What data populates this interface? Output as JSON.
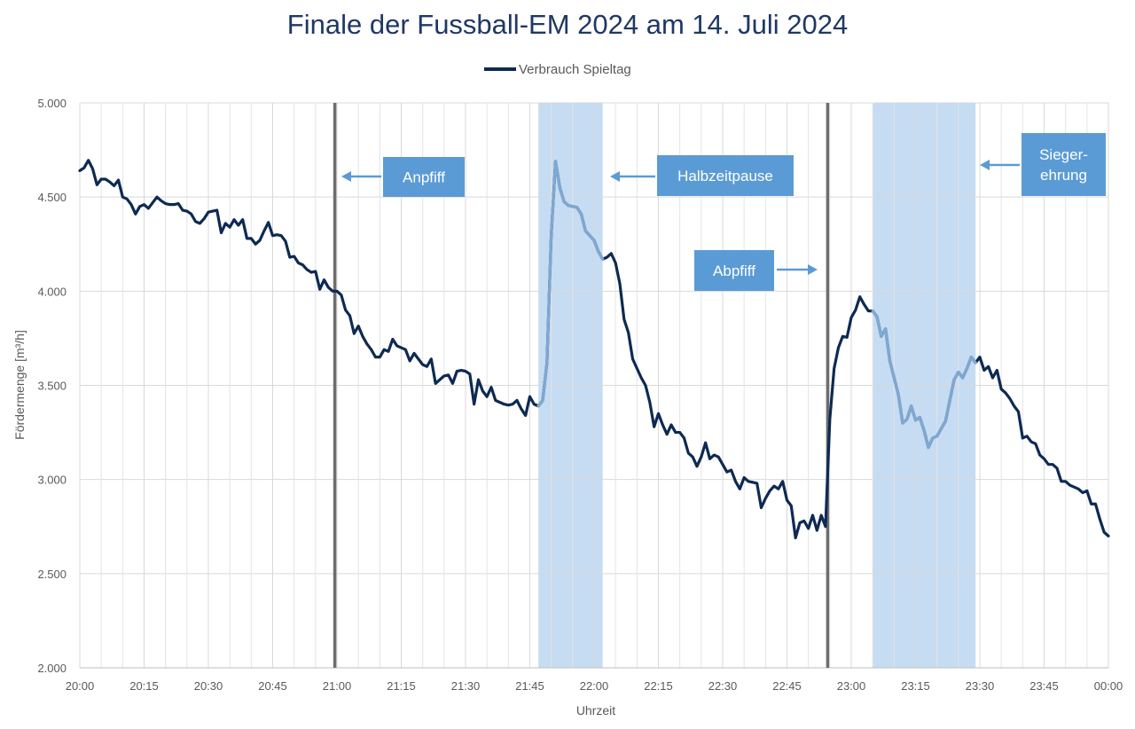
{
  "chart_data": {
    "type": "line",
    "title": "Finale der Fussball-EM 2024 am 14. Juli 2024",
    "xlabel": "Uhrzeit",
    "ylabel": "Fördermenge [m³/h]",
    "ylim": [
      2000,
      5000
    ],
    "y_ticks": [
      2000,
      2500,
      3000,
      3500,
      4000,
      4500,
      5000
    ],
    "y_tick_labels": [
      "2.000",
      "2.500",
      "3.000",
      "3.500",
      "4.000",
      "4.500",
      "5.000"
    ],
    "x_ticks": [
      "20:00",
      "20:15",
      "20:30",
      "20:45",
      "21:00",
      "21:15",
      "21:30",
      "21:45",
      "22:00",
      "22:15",
      "22:30",
      "22:45",
      "23:00",
      "23:15",
      "23:30",
      "23:45",
      "00:00"
    ],
    "grid": true,
    "legend_position": "top",
    "series": [
      {
        "name": "Verbrauch Spieltag",
        "color": "#0d2a52",
        "x": [
          "20:00",
          "20:01",
          "20:02",
          "20:03",
          "20:04",
          "20:05",
          "20:06",
          "20:07",
          "20:08",
          "20:09",
          "20:10",
          "20:11",
          "20:12",
          "20:13",
          "20:14",
          "20:15",
          "20:16",
          "20:17",
          "20:18",
          "20:19",
          "20:20",
          "20:21",
          "20:22",
          "20:23",
          "20:24",
          "20:25",
          "20:26",
          "20:27",
          "20:28",
          "20:29",
          "20:30",
          "20:31",
          "20:32",
          "20:33",
          "20:34",
          "20:35",
          "20:36",
          "20:37",
          "20:38",
          "20:39",
          "20:40",
          "20:41",
          "20:42",
          "20:43",
          "20:44",
          "20:45",
          "20:46",
          "20:47",
          "20:48",
          "20:49",
          "20:50",
          "20:51",
          "20:52",
          "20:53",
          "20:54",
          "20:55",
          "20:56",
          "20:57",
          "20:58",
          "20:59",
          "21:00",
          "21:01",
          "21:02",
          "21:03",
          "21:04",
          "21:05",
          "21:06",
          "21:07",
          "21:08",
          "21:09",
          "21:10",
          "21:11",
          "21:12",
          "21:13",
          "21:14",
          "21:15",
          "21:16",
          "21:17",
          "21:18",
          "21:19",
          "21:20",
          "21:21",
          "21:22",
          "21:23",
          "21:24",
          "21:25",
          "21:26",
          "21:27",
          "21:28",
          "21:29",
          "21:30",
          "21:31",
          "21:32",
          "21:33",
          "21:34",
          "21:35",
          "21:36",
          "21:37",
          "21:38",
          "21:39",
          "21:40",
          "21:41",
          "21:42",
          "21:43",
          "21:44",
          "21:45",
          "21:46",
          "21:47",
          "21:48",
          "21:49",
          "21:50",
          "21:51",
          "21:52",
          "21:53",
          "21:54",
          "21:55",
          "21:56",
          "21:57",
          "21:58",
          "21:59",
          "22:00",
          "22:01",
          "22:02",
          "22:03",
          "22:04",
          "22:05",
          "22:06",
          "22:07",
          "22:08",
          "22:09",
          "22:10",
          "22:11",
          "22:12",
          "22:13",
          "22:14",
          "22:15",
          "22:16",
          "22:17",
          "22:18",
          "22:19",
          "22:20",
          "22:21",
          "22:22",
          "22:23",
          "22:24",
          "22:25",
          "22:26",
          "22:27",
          "22:28",
          "22:29",
          "22:30",
          "22:31",
          "22:32",
          "22:33",
          "22:34",
          "22:35",
          "22:36",
          "22:37",
          "22:38",
          "22:39",
          "22:40",
          "22:41",
          "22:42",
          "22:43",
          "22:44",
          "22:45",
          "22:46",
          "22:47",
          "22:48",
          "22:49",
          "22:50",
          "22:51",
          "22:52",
          "22:53",
          "22:54",
          "22:55",
          "22:56",
          "22:57",
          "22:58",
          "22:59",
          "23:00",
          "23:01",
          "23:02",
          "23:03",
          "23:04",
          "23:05",
          "23:06",
          "23:07",
          "23:08",
          "23:09",
          "23:10",
          "23:11",
          "23:12",
          "23:13",
          "23:14",
          "23:15",
          "23:16",
          "23:17",
          "23:18",
          "23:19",
          "23:20",
          "23:21",
          "23:22",
          "23:23",
          "23:24",
          "23:25",
          "23:26",
          "23:27",
          "23:28",
          "23:29",
          "23:30",
          "23:31",
          "23:32",
          "23:33",
          "23:34",
          "23:35",
          "23:36",
          "23:37",
          "23:38",
          "23:39",
          "23:40",
          "23:41",
          "23:42",
          "23:43",
          "23:44",
          "23:45",
          "23:46",
          "23:47",
          "23:48",
          "23:49",
          "23:50",
          "23:51",
          "23:52",
          "23:53",
          "23:54",
          "23:55",
          "23:56",
          "23:57",
          "23:58",
          "23:59",
          "00:00"
        ],
        "y": [
          4640,
          4655,
          4695,
          4650,
          4565,
          4595,
          4595,
          4580,
          4560,
          4590,
          4500,
          4490,
          4460,
          4410,
          4450,
          4460,
          4440,
          4470,
          4500,
          4480,
          4465,
          4460,
          4460,
          4465,
          4430,
          4425,
          4410,
          4370,
          4360,
          4385,
          4420,
          4425,
          4430,
          4310,
          4360,
          4340,
          4380,
          4350,
          4380,
          4280,
          4280,
          4250,
          4270,
          4320,
          4365,
          4295,
          4300,
          4295,
          4265,
          4180,
          4185,
          4150,
          4140,
          4115,
          4100,
          4105,
          4010,
          4060,
          4020,
          4000,
          4000,
          3980,
          3900,
          3870,
          3775,
          3815,
          3760,
          3720,
          3690,
          3650,
          3650,
          3690,
          3680,
          3745,
          3710,
          3700,
          3690,
          3630,
          3670,
          3640,
          3610,
          3600,
          3640,
          3510,
          3530,
          3550,
          3555,
          3510,
          3575,
          3580,
          3575,
          3560,
          3400,
          3530,
          3470,
          3440,
          3490,
          3420,
          3410,
          3400,
          3395,
          3400,
          3420,
          3375,
          3340,
          3440,
          3400,
          3390,
          3420,
          3620,
          4300,
          4690,
          4550,
          4475,
          4455,
          4450,
          4445,
          4410,
          4320,
          4295,
          4270,
          4210,
          4170,
          4180,
          4200,
          4150,
          4040,
          3850,
          3780,
          3640,
          3590,
          3540,
          3500,
          3410,
          3280,
          3350,
          3290,
          3240,
          3290,
          3250,
          3250,
          3220,
          3140,
          3120,
          3070,
          3120,
          3195,
          3110,
          3130,
          3120,
          3080,
          3040,
          3050,
          2990,
          2950,
          3010,
          2990,
          2985,
          2980,
          2850,
          2900,
          2940,
          2965,
          2950,
          2990,
          2890,
          2860,
          2690,
          2770,
          2780,
          2740,
          2810,
          2730,
          2810,
          2750,
          3320,
          3590,
          3700,
          3760,
          3755,
          3860,
          3900,
          3970,
          3930,
          3895,
          3895,
          3865,
          3760,
          3800,
          3630,
          3540,
          3450,
          3300,
          3320,
          3390,
          3315,
          3330,
          3260,
          3170,
          3220,
          3230,
          3270,
          3310,
          3420,
          3530,
          3570,
          3540,
          3590,
          3650,
          3620,
          3650,
          3580,
          3600,
          3540,
          3580,
          3480,
          3460,
          3430,
          3390,
          3360,
          3220,
          3230,
          3200,
          3190,
          3130,
          3110,
          3080,
          3080,
          3060,
          2990,
          2990,
          2970,
          2960,
          2950,
          2930,
          2940,
          2870,
          2870,
          2790,
          2720,
          2700
        ]
      }
    ],
    "shaded_periods": [
      {
        "from": "21:47",
        "to": "22:02",
        "color": "#c5dcf2"
      },
      {
        "from": "23:05",
        "to": "23:29",
        "color": "#c5dcf2"
      }
    ],
    "vertical_lines": [
      {
        "at": "20:59.5",
        "color": "#6d6d6d"
      },
      {
        "at": "22:54.5",
        "color": "#6d6d6d"
      }
    ],
    "annotations": [
      {
        "text": [
          "Anpfiff"
        ],
        "arrow": "left",
        "color": "#5b9bd5"
      },
      {
        "text": [
          "Halbzeitpause"
        ],
        "arrow": "left",
        "color": "#5b9bd5"
      },
      {
        "text": [
          "Abpfiff"
        ],
        "arrow": "right",
        "color": "#5b9bd5"
      },
      {
        "text": [
          "Sieger-",
          "ehrung"
        ],
        "arrow": "left",
        "color": "#5b9bd5"
      }
    ]
  }
}
